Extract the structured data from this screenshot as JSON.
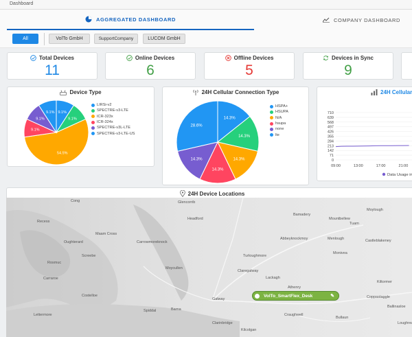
{
  "window": {
    "title": "Dashboard"
  },
  "tabs": [
    {
      "label": "AGGREGATED DASHBOARD"
    },
    {
      "label": "COMPANY DASHBOARD"
    }
  ],
  "filters": [
    "All",
    "VolTo GmbH",
    "SupportCompany",
    "LUCOM GmbH"
  ],
  "stats": [
    {
      "label": "Total Devices",
      "value": "11",
      "color": "#1e88e5"
    },
    {
      "label": "Online Devices",
      "value": "6",
      "color": "#43a047"
    },
    {
      "label": "Offline Devices",
      "value": "5",
      "color": "#e53935"
    },
    {
      "label": "Devices in Sync",
      "value": "9",
      "color": "#43a047"
    }
  ],
  "device_type": {
    "title": "Device Type",
    "legend": [
      "LIRSi-v2",
      "SPECTRE-v3-LTE",
      "ICR-323x",
      "ICR-324x",
      "SPECTRE-v3L-LTE",
      "SPECTRE-v3-LTE-US"
    ],
    "colors": [
      "#2196f3",
      "#26d07c",
      "#ffa800",
      "#ff4560",
      "#775dd0",
      "#2196f3"
    ],
    "values": [
      9.1,
      9.1,
      54.5,
      9.1,
      9.1,
      9.1
    ],
    "labels": [
      "9.1%",
      "9.1%",
      "54.5%",
      "9.1%",
      "9.1%",
      "9.1%"
    ]
  },
  "cellular_type": {
    "title": "24H Cellular Connection Type",
    "legend": [
      "HSPA+",
      "HSUPA",
      "N/A",
      "hsupa",
      "none",
      "lte"
    ],
    "colors": [
      "#2196f3",
      "#26d07c",
      "#ffa800",
      "#ff4560",
      "#775dd0",
      "#2196f3"
    ],
    "values": [
      14.3,
      14.3,
      14.3,
      14.3,
      14.3,
      28.6
    ],
    "labels": [
      "14.3%",
      "14.3%",
      "14.3%",
      "14.3%",
      "14.3%",
      "28.6%"
    ]
  },
  "cellular_usage": {
    "title": "24H Cellular",
    "legend": "Data Usage in"
  },
  "chart_data": {
    "type": "line",
    "title": "24H Cellular",
    "ylim": [
      0,
      710
    ],
    "yticks": [
      "710",
      "639",
      "568",
      "497",
      "426",
      "355",
      "284",
      "213",
      "142",
      "71",
      "0"
    ],
    "xticks": [
      "09:00",
      "13:00",
      "17:00",
      "21:00"
    ],
    "x": [
      "09:00",
      "10:00",
      "11:00",
      "12:00",
      "13:00",
      "14:00",
      "15:00",
      "16:00",
      "17:00",
      "18:00",
      "19:00",
      "20:00",
      "21:00",
      "22:00"
    ],
    "series": [
      {
        "name": "Data Usage in",
        "values": [
          200,
          205,
          206,
          206,
          207,
          208,
          210,
          212,
          214,
          213,
          214,
          215,
          215,
          216
        ]
      }
    ]
  },
  "map": {
    "title": "24H Device Locations",
    "device_label": "VolTo_SmartFlex_Desk",
    "places": [
      "Glencorrib",
      "Headford",
      "Recess",
      "Oughterard",
      "Carrowmoreknock",
      "Moycullen",
      "Galway",
      "Spiddal",
      "Costelloe",
      "Barna",
      "Clarinbridge",
      "Kilcolgan",
      "Craughwell",
      "Athenry",
      "Monivea",
      "Tuam",
      "Abbeyknockmoy",
      "Turloughmore",
      "Lackagh",
      "Claregalway",
      "Menlough",
      "Castleblakeney",
      "Ballinasloe",
      "Kiltormer",
      "Coppastaggle",
      "Bullaun",
      "Loughrea",
      "Moylough",
      "Mountbellew",
      "Bamadery",
      "Cong",
      "Maam Cross",
      "Screebe",
      "Carraroe",
      "Rosmuc",
      "Lettermore"
    ]
  }
}
